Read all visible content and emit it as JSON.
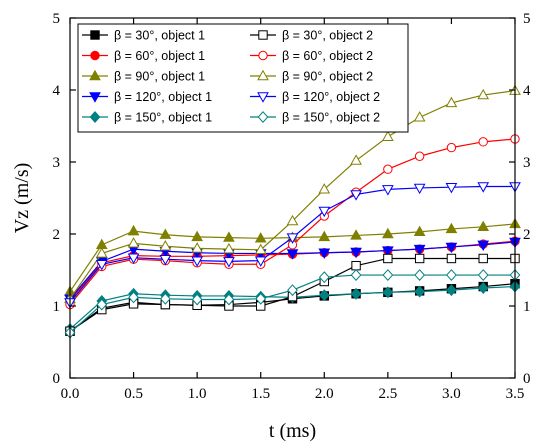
{
  "chart_data": {
    "type": "line",
    "xlabel": "t (ms)",
    "ylabel": "Vz (m/s)",
    "xlim": [
      0,
      3.5
    ],
    "ylim": [
      0,
      5
    ],
    "x_ticks": [
      "0.0",
      "0.5",
      "1.0",
      "1.5",
      "2.0",
      "2.5",
      "3.0",
      "3.5"
    ],
    "y_ticks": [
      "0",
      "1",
      "2",
      "3",
      "4",
      "5"
    ],
    "grid": false,
    "legend_position": "top-left",
    "x": [
      0,
      0.25,
      0.5,
      0.75,
      1.0,
      1.25,
      1.5,
      1.75,
      2.0,
      2.25,
      2.5,
      2.75,
      3.0,
      3.25,
      3.5
    ],
    "series": [
      {
        "name": "β = 30°,   object 1",
        "color": "#000000",
        "marker": "square",
        "filled": true,
        "values": [
          0.65,
          0.97,
          1.05,
          1.02,
          1.01,
          1.02,
          1.05,
          1.1,
          1.14,
          1.17,
          1.19,
          1.21,
          1.24,
          1.27,
          1.31
        ]
      },
      {
        "name": "β = 60°,   object 1",
        "color": "#ff0000",
        "marker": "circle",
        "filled": true,
        "values": [
          1.08,
          1.6,
          1.7,
          1.69,
          1.69,
          1.7,
          1.71,
          1.72,
          1.74,
          1.75,
          1.77,
          1.79,
          1.82,
          1.86,
          1.9
        ]
      },
      {
        "name": "β = 90°,   object 1",
        "color": "#808000",
        "marker": "triangle-up",
        "filled": true,
        "values": [
          1.2,
          1.85,
          2.04,
          1.99,
          1.96,
          1.95,
          1.94,
          1.95,
          1.96,
          1.98,
          2.0,
          2.03,
          2.07,
          2.1,
          2.14
        ]
      },
      {
        "name": "β = 120°, object 1",
        "color": "#0000ff",
        "marker": "triangle-down",
        "filled": true,
        "values": [
          1.1,
          1.62,
          1.79,
          1.76,
          1.74,
          1.73,
          1.73,
          1.73,
          1.74,
          1.75,
          1.77,
          1.79,
          1.82,
          1.85,
          1.89
        ]
      },
      {
        "name": "β = 150°, object 1",
        "color": "#008080",
        "marker": "diamond",
        "filled": true,
        "values": [
          0.68,
          1.07,
          1.17,
          1.15,
          1.14,
          1.14,
          1.13,
          1.12,
          1.15,
          1.17,
          1.19,
          1.2,
          1.22,
          1.25,
          1.27
        ]
      },
      {
        "name": "β = 30°,   object 2",
        "color": "#000000",
        "marker": "square",
        "filled": false,
        "values": [
          0.65,
          0.95,
          1.03,
          1.02,
          1.01,
          1.0,
          1.0,
          1.13,
          1.34,
          1.56,
          1.66,
          1.66,
          1.66,
          1.66,
          1.66
        ]
      },
      {
        "name": "β = 60°,   object 2",
        "color": "#ff0000",
        "marker": "circle",
        "filled": false,
        "values": [
          1.02,
          1.55,
          1.65,
          1.63,
          1.6,
          1.58,
          1.58,
          1.85,
          2.25,
          2.58,
          2.9,
          3.08,
          3.2,
          3.28,
          3.32
        ]
      },
      {
        "name": "β = 90°,   object 2",
        "color": "#808000",
        "marker": "triangle-up",
        "filled": false,
        "values": [
          1.1,
          1.73,
          1.87,
          1.83,
          1.8,
          1.79,
          1.78,
          2.18,
          2.62,
          3.02,
          3.35,
          3.62,
          3.82,
          3.93,
          3.99
        ]
      },
      {
        "name": "β = 120°, object 2",
        "color": "#0000ff",
        "marker": "triangle-down",
        "filled": false,
        "values": [
          1.05,
          1.58,
          1.67,
          1.65,
          1.63,
          1.62,
          1.63,
          1.95,
          2.32,
          2.55,
          2.62,
          2.64,
          2.65,
          2.66,
          2.66
        ]
      },
      {
        "name": "β = 150°, object 2",
        "color": "#008080",
        "marker": "diamond",
        "filled": false,
        "values": [
          0.63,
          1.02,
          1.12,
          1.1,
          1.09,
          1.09,
          1.1,
          1.22,
          1.4,
          1.43,
          1.43,
          1.43,
          1.43,
          1.43,
          1.43
        ]
      }
    ]
  }
}
